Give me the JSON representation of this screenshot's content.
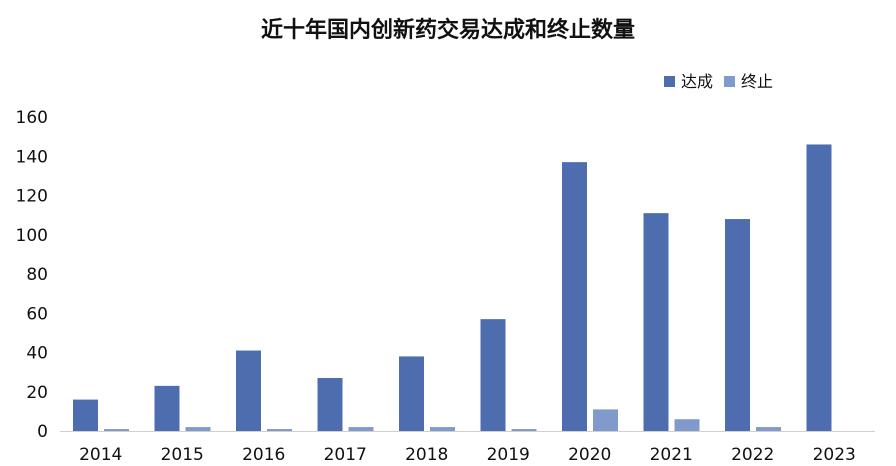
{
  "chart_data": {
    "type": "bar",
    "title": "近十年国内创新药交易达成和终止数量",
    "xlabel": "",
    "ylabel": "",
    "categories": [
      "2014",
      "2015",
      "2016",
      "2017",
      "2018",
      "2019",
      "2020",
      "2021",
      "2022",
      "2023"
    ],
    "series": [
      {
        "name": "达成",
        "color": "#4E6DAE",
        "values": [
          16,
          23,
          41,
          27,
          38,
          57,
          137,
          111,
          108,
          146
        ]
      },
      {
        "name": "终止",
        "color": "#7F9ACB",
        "values": [
          1,
          2,
          1,
          2,
          2,
          1,
          11,
          6,
          2,
          0
        ]
      }
    ],
    "ylim": [
      0,
      160
    ],
    "yticks": [
      0,
      20,
      40,
      60,
      80,
      100,
      120,
      140,
      160
    ],
    "grid": false,
    "legend": "top-right"
  }
}
